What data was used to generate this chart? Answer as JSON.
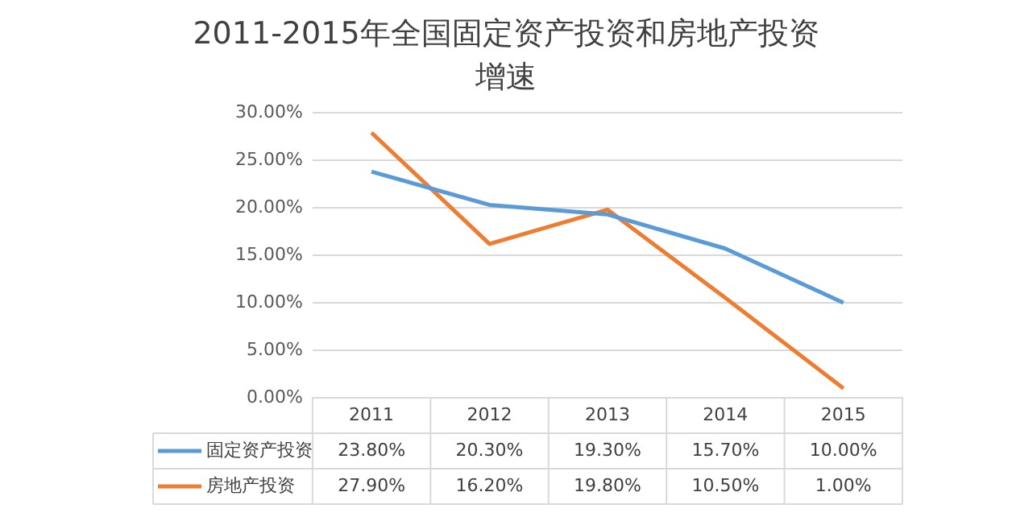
{
  "chart_data": {
    "type": "line",
    "title": "2011-2015年全国固定资产投资和房地产投资增速",
    "categories": [
      "2011",
      "2012",
      "2013",
      "2014",
      "2015"
    ],
    "series": [
      {
        "name": "固定资产投资",
        "color": "#5b9bd5",
        "values": [
          23.8,
          20.3,
          19.3,
          15.7,
          10.0
        ],
        "value_labels": [
          "23.80%",
          "20.30%",
          "19.30%",
          "15.70%",
          "10.00%"
        ]
      },
      {
        "name": "房地产投资",
        "color": "#ed7d31",
        "values": [
          27.9,
          16.2,
          19.8,
          10.5,
          1.0
        ],
        "value_labels": [
          "27.90%",
          "16.20%",
          "19.80%",
          "10.50%",
          "1.00%"
        ]
      }
    ],
    "ylim": [
      0,
      30
    ],
    "yticks": [
      {
        "value": 0,
        "label": "0.00%"
      },
      {
        "value": 5,
        "label": "5.00%"
      },
      {
        "value": 10,
        "label": "10.00%"
      },
      {
        "value": 15,
        "label": "15.00%"
      },
      {
        "value": 20,
        "label": "20.00%"
      },
      {
        "value": 25,
        "label": "25.00%"
      },
      {
        "value": 30,
        "label": "30.00%"
      }
    ],
    "grid": "y",
    "legend": "bottom",
    "marker": "none",
    "line_style": "solid"
  }
}
